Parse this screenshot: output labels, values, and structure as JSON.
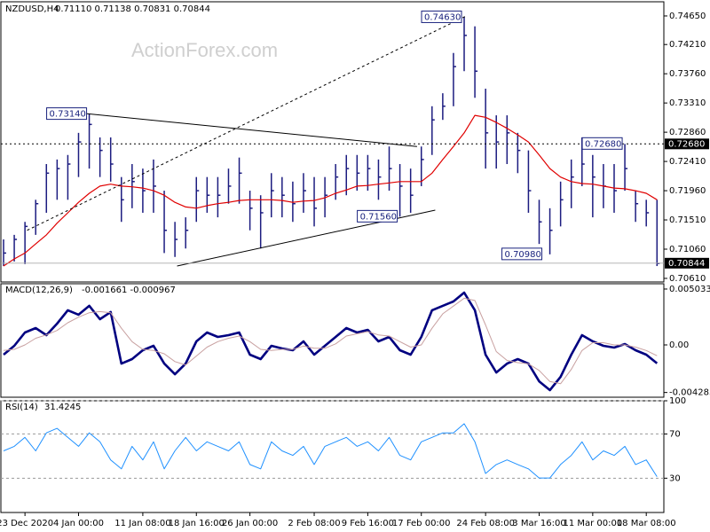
{
  "chart_data": [
    {
      "type": "ohlc",
      "title": "NZDUSD,H4",
      "subtitle": "0.71110 0.71138 0.70831 0.70844",
      "watermark": "ActionForex.com",
      "categories": [
        null,
        null,
        "23 Dec 2020",
        null,
        null,
        null,
        null,
        "4 Jan 00:00",
        null,
        null,
        null,
        null,
        null,
        "11 Jan 08:00",
        null,
        null,
        null,
        null,
        "18 Jan 16:00",
        null,
        null,
        null,
        null,
        "26 Jan 00:00",
        null,
        null,
        null,
        null,
        null,
        "2 Feb 08:00",
        null,
        null,
        null,
        null,
        "9 Feb 16:00",
        null,
        null,
        null,
        null,
        "17 Feb 00:00",
        null,
        null,
        null,
        null,
        null,
        "24 Feb 08:00",
        null,
        null,
        null,
        null,
        "3 Mar 16:00",
        null,
        null,
        null,
        null,
        "11 Mar 00:00",
        null,
        null,
        null,
        null,
        "18 Mar 08:00",
        null
      ],
      "high": [
        0.7121,
        0.7128,
        0.7148,
        0.7182,
        0.7237,
        0.7244,
        0.7251,
        0.7285,
        0.7314,
        0.7278,
        0.7278,
        0.7217,
        0.7237,
        0.723,
        0.7244,
        0.7196,
        0.7148,
        0.7155,
        0.7217,
        0.7217,
        0.7217,
        0.723,
        0.7247,
        0.7196,
        0.7189,
        0.7223,
        0.7217,
        0.721,
        0.7223,
        0.7217,
        0.7217,
        0.7237,
        0.7251,
        0.7251,
        0.7251,
        0.7244,
        0.7264,
        0.7237,
        0.723,
        0.7264,
        0.7326,
        0.7346,
        0.7408,
        0.7463,
        0.7449,
        0.7353,
        0.7312,
        0.7312,
        0.7285,
        0.7258,
        0.7182,
        0.7169,
        0.721,
        0.7244,
        0.7278,
        0.7251,
        0.7237,
        0.7237,
        0.7268,
        0.7196,
        0.7182,
        0.7182
      ],
      "low": [
        0.708,
        0.7087,
        0.7083,
        0.7128,
        0.7162,
        0.7182,
        0.7182,
        0.7217,
        0.723,
        0.7217,
        0.721,
        0.7148,
        0.7169,
        0.7162,
        0.7162,
        0.71,
        0.7094,
        0.7107,
        0.7148,
        0.7162,
        0.7155,
        0.7176,
        0.7176,
        0.7135,
        0.7107,
        0.7155,
        0.7155,
        0.7148,
        0.7162,
        0.7141,
        0.7155,
        0.7182,
        0.7189,
        0.7196,
        0.7196,
        0.7182,
        0.7196,
        0.7156,
        0.7162,
        0.7203,
        0.7251,
        0.7305,
        0.7326,
        0.738,
        0.7339,
        0.723,
        0.723,
        0.7237,
        0.7223,
        0.7162,
        0.7114,
        0.7098,
        0.7141,
        0.7169,
        0.7203,
        0.7155,
        0.7169,
        0.7162,
        0.7196,
        0.7148,
        0.7141,
        0.708
      ],
      "close": [
        0.71,
        0.7121,
        0.7141,
        0.7176,
        0.7223,
        0.723,
        0.7237,
        0.7271,
        0.7298,
        0.7258,
        0.7237,
        0.7182,
        0.721,
        0.7196,
        0.7203,
        0.7135,
        0.7121,
        0.7135,
        0.7196,
        0.7189,
        0.7189,
        0.7203,
        0.7223,
        0.7169,
        0.7162,
        0.7196,
        0.7189,
        0.7176,
        0.7196,
        0.7169,
        0.7189,
        0.7217,
        0.723,
        0.7223,
        0.723,
        0.7217,
        0.723,
        0.7203,
        0.7189,
        0.7244,
        0.7305,
        0.7326,
        0.7387,
        0.7435,
        0.738,
        0.7285,
        0.7271,
        0.7285,
        0.7258,
        0.7196,
        0.7148,
        0.7135,
        0.7182,
        0.7217,
        0.7237,
        0.7217,
        0.7203,
        0.7196,
        0.723,
        0.7176,
        0.7162,
        0.7084
      ],
      "color": "#1c1c80",
      "series": [
        {
          "color": "#e00000",
          "values": [
            0.708,
            0.7091,
            0.71,
            0.7114,
            0.7128,
            0.7146,
            0.7162,
            0.7178,
            0.7192,
            0.7203,
            0.7206,
            0.7203,
            0.7202,
            0.72,
            0.7196,
            0.7189,
            0.7178,
            0.7171,
            0.7169,
            0.7173,
            0.7176,
            0.7178,
            0.7181,
            0.7182,
            0.7182,
            0.7182,
            0.7181,
            0.7178,
            0.718,
            0.7181,
            0.7185,
            0.7192,
            0.7197,
            0.7203,
            0.7204,
            0.7206,
            0.7208,
            0.721,
            0.721,
            0.721,
            0.7223,
            0.7244,
            0.7264,
            0.7285,
            0.7312,
            0.7309,
            0.7301,
            0.7292,
            0.7282,
            0.7271,
            0.7251,
            0.723,
            0.7217,
            0.721,
            0.7207,
            0.7206,
            0.7203,
            0.72,
            0.7199,
            0.7196,
            0.7192,
            0.7182
          ]
        }
      ],
      "ylim": [
        0.70555,
        0.74868
      ],
      "yticks": [
        {
          "value": 0.7465,
          "label": "0.74650"
        },
        {
          "value": 0.7421,
          "label": "0.74210"
        },
        {
          "value": 0.7376,
          "label": "0.73760"
        },
        {
          "value": 0.7331,
          "label": "0.73310"
        },
        {
          "value": 0.7286,
          "label": "0.72860"
        },
        {
          "value": 0.7241,
          "label": "0.72410"
        },
        {
          "value": 0.7196,
          "label": "0.71960"
        },
        {
          "value": 0.7151,
          "label": "0.71510"
        },
        {
          "value": 0.7106,
          "label": "0.71060"
        },
        {
          "value": 0.7061,
          "label": "0.70610"
        }
      ],
      "annotations": [
        {
          "label": "0.73140",
          "value": 0.7314,
          "x": 8
        },
        {
          "label": "0.74630",
          "value": 0.7463,
          "x": 43
        },
        {
          "label": "0.71560",
          "value": 0.7156,
          "x": 37
        },
        {
          "label": "0.70980",
          "value": 0.7098,
          "x": 50.5
        },
        {
          "label": "0.72680",
          "value": 0.7268,
          "x": 58
        }
      ],
      "trendlines": [
        {
          "x": [
            7.5,
            38.6
          ],
          "y": [
            0.7315,
            0.7264
          ],
          "dashed": false
        },
        {
          "x": [
            2.2,
            43.2
          ],
          "y": [
            0.7135,
            0.7465
          ],
          "dashed": true
        },
        {
          "x": [
            16.2,
            40.3
          ],
          "y": [
            0.708,
            0.7166
          ],
          "dashed": false
        }
      ],
      "hline": {
        "value": 0.7268,
        "label": "0.72680"
      },
      "last": {
        "value": 0.70844,
        "label": "0.70844"
      }
    },
    {
      "type": "line",
      "title": "MACD(12,26,9)",
      "subtitle": "-0.001661 -0.000967",
      "series": [
        {
          "color": "#000080",
          "values": [
            -0.00088,
            -8e-05,
            0.00112,
            0.00152,
            0.00088,
            0.00192,
            0.00312,
            0.00272,
            0.00352,
            0.00232,
            0.00296,
            -0.00168,
            -0.00128,
            -0.00048,
            -8e-05,
            -0.00168,
            -0.00264,
            -0.00168,
            0.00032,
            0.00112,
            0.00072,
            0.00088,
            0.00112,
            -0.00088,
            -0.00128,
            -8e-05,
            -0.00032,
            -0.00048,
            0.00032,
            -0.00088,
            -8e-05,
            0.00072,
            0.00152,
            0.00112,
            0.00136,
            0.00032,
            0.00072,
            -0.00048,
            -0.00088,
            0.00072,
            0.00312,
            0.00352,
            0.00391,
            0.00471,
            0.00312,
            -0.00088,
            -0.00248,
            -0.00168,
            -0.00128,
            -0.00168,
            -0.00328,
            -0.00407,
            -0.00288,
            -0.00088,
            0.00088,
            0.00032,
            -8e-05,
            -0.00024,
            8e-05,
            -0.00048,
            -0.00088,
            -0.00166
          ]
        },
        {
          "color": "#c8a0a0",
          "values": [
            -0.0005,
            -0.0004,
            0.0,
            0.0006,
            0.0009,
            0.0013,
            0.002,
            0.0025,
            0.0029,
            0.003,
            0.0029,
            0.0015,
            0.0003,
            -0.0004,
            -0.0005,
            -0.0008,
            -0.0015,
            -0.0018,
            -0.001,
            -0.0002,
            0.0003,
            0.0006,
            0.0008,
            0.0003,
            -0.0004,
            -0.0005,
            -0.0004,
            -0.0004,
            -0.0001,
            -0.0003,
            -0.0003,
            0.0001,
            0.0008,
            0.001,
            0.0012,
            0.0009,
            0.0008,
            0.0003,
            -0.0002,
            0.0,
            0.0015,
            0.0028,
            0.0035,
            0.0042,
            0.004,
            0.0018,
            -0.0006,
            -0.0014,
            -0.0016,
            -0.0017,
            -0.0023,
            -0.0033,
            -0.0035,
            -0.0022,
            -0.0005,
            0.0002,
            0.0002,
            0.0,
            0.0,
            -0.0002,
            -0.0005,
            -0.00097
          ]
        }
      ],
      "ylim": [
        -0.00471,
        0.00551
      ],
      "yticks": [
        0.005033,
        {
          "value": 0,
          "label": "0.00"
        },
        -0.004283
      ],
      "grid": false
    },
    {
      "type": "line",
      "title": "RSI(14)",
      "subtitle": "31.4245",
      "series": [
        {
          "color": "#1e90ff",
          "values": [
            54.7,
            58.8,
            66.9,
            54.7,
            71.0,
            75.1,
            66.9,
            58.8,
            71.0,
            62.9,
            46.5,
            38.4,
            58.8,
            46.5,
            62.9,
            38.4,
            54.7,
            66.9,
            54.7,
            62.9,
            58.8,
            54.7,
            62.9,
            42.4,
            38.4,
            62.9,
            54.7,
            50.6,
            58.8,
            42.4,
            58.8,
            62.9,
            66.9,
            58.8,
            62.9,
            54.7,
            66.9,
            50.6,
            46.5,
            62.9,
            66.9,
            71.0,
            71.0,
            79.2,
            62.9,
            34.3,
            42.4,
            46.5,
            42.4,
            38.4,
            30.2,
            30.2,
            42.4,
            50.6,
            62.9,
            46.5,
            54.7,
            50.6,
            58.8,
            42.4,
            46.5,
            31.4
          ]
        }
      ],
      "ylim": [
        -1,
        100
      ],
      "yticks": [
        100,
        70,
        30
      ],
      "grid": true
    }
  ]
}
